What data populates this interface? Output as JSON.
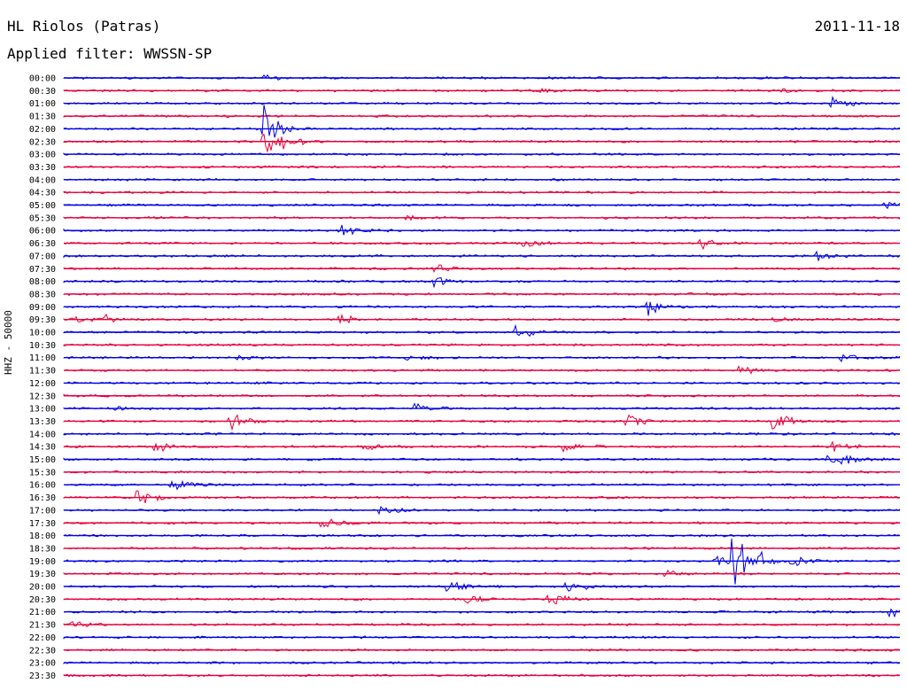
{
  "header": {
    "station": "HL Riolos (Patras)",
    "date": "2011-11-18",
    "filter": "Applied filter: WWSSN-SP"
  },
  "ylabel": "HHZ - 50000",
  "colors": {
    "odd_line": "#e8003c",
    "even_line": "#0000e6"
  },
  "chart_data": {
    "type": "line",
    "title": "",
    "subtitle": "",
    "ylabel": "HHZ - 50000",
    "xlabel": "",
    "rows": [
      "00:00",
      "00:30",
      "01:00",
      "01:30",
      "02:00",
      "02:30",
      "03:00",
      "03:30",
      "04:00",
      "04:30",
      "05:00",
      "05:30",
      "06:00",
      "06:30",
      "07:00",
      "07:30",
      "08:00",
      "08:30",
      "09:00",
      "09:30",
      "10:00",
      "10:30",
      "11:00",
      "11:30",
      "12:00",
      "12:30",
      "13:00",
      "13:30",
      "14:00",
      "14:30",
      "15:00",
      "15:30",
      "16:00",
      "16:30",
      "17:00",
      "17:30",
      "18:00",
      "18:30",
      "19:00",
      "19:30",
      "20:00",
      "20:30",
      "21:00",
      "21:30",
      "22:00",
      "22:30",
      "23:00",
      "23:30"
    ],
    "line_colors": [
      "#0000e6",
      "#e8003c"
    ],
    "grid": false,
    "legend": "none",
    "events": [
      {
        "row": 0,
        "x": 0.24,
        "amp": 0.4
      },
      {
        "row": 1,
        "x": 0.57,
        "amp": 0.3
      },
      {
        "row": 1,
        "x": 0.86,
        "amp": 0.3
      },
      {
        "row": 2,
        "x": 0.92,
        "amp": 0.8
      },
      {
        "row": 4,
        "x": 0.24,
        "amp": 3.0
      },
      {
        "row": 5,
        "x": 0.24,
        "amp": 2.5
      },
      {
        "row": 5,
        "x": 0.26,
        "amp": 1.0
      },
      {
        "row": 10,
        "x": 0.98,
        "amp": 0.8
      },
      {
        "row": 11,
        "x": 0.41,
        "amp": 0.3
      },
      {
        "row": 12,
        "x": 0.33,
        "amp": 0.9
      },
      {
        "row": 13,
        "x": 0.55,
        "amp": 0.8
      },
      {
        "row": 13,
        "x": 0.76,
        "amp": 1.0
      },
      {
        "row": 14,
        "x": 0.9,
        "amp": 1.0
      },
      {
        "row": 15,
        "x": 0.44,
        "amp": 0.8
      },
      {
        "row": 16,
        "x": 0.44,
        "amp": 1.0
      },
      {
        "row": 18,
        "x": 0.7,
        "amp": 1.0
      },
      {
        "row": 19,
        "x": 0.01,
        "amp": 0.7
      },
      {
        "row": 19,
        "x": 0.05,
        "amp": 0.5
      },
      {
        "row": 19,
        "x": 0.33,
        "amp": 0.8
      },
      {
        "row": 19,
        "x": 0.84,
        "amp": 0.6
      },
      {
        "row": 20,
        "x": 0.54,
        "amp": 1.2
      },
      {
        "row": 22,
        "x": 0.21,
        "amp": 0.5
      },
      {
        "row": 22,
        "x": 0.41,
        "amp": 0.6
      },
      {
        "row": 22,
        "x": 0.93,
        "amp": 1.0
      },
      {
        "row": 23,
        "x": 0.81,
        "amp": 0.8
      },
      {
        "row": 26,
        "x": 0.06,
        "amp": 0.4
      },
      {
        "row": 26,
        "x": 0.42,
        "amp": 0.6
      },
      {
        "row": 27,
        "x": 0.2,
        "amp": 1.4
      },
      {
        "row": 27,
        "x": 0.67,
        "amp": 1.5
      },
      {
        "row": 27,
        "x": 0.85,
        "amp": 1.4
      },
      {
        "row": 29,
        "x": 0.11,
        "amp": 0.7
      },
      {
        "row": 29,
        "x": 0.36,
        "amp": 0.6
      },
      {
        "row": 29,
        "x": 0.6,
        "amp": 0.6
      },
      {
        "row": 29,
        "x": 0.92,
        "amp": 1.0
      },
      {
        "row": 30,
        "x": 0.91,
        "amp": 0.7
      },
      {
        "row": 30,
        "x": 0.93,
        "amp": 0.8
      },
      {
        "row": 32,
        "x": 0.13,
        "amp": 1.0
      },
      {
        "row": 33,
        "x": 0.09,
        "amp": 0.9
      },
      {
        "row": 34,
        "x": 0.38,
        "amp": 0.6
      },
      {
        "row": 35,
        "x": 0.31,
        "amp": 1.5
      },
      {
        "row": 38,
        "x": 0.78,
        "amp": 0.8
      },
      {
        "row": 38,
        "x": 0.8,
        "amp": 4.0
      },
      {
        "row": 38,
        "x": 0.83,
        "amp": 1.0
      },
      {
        "row": 38,
        "x": 0.87,
        "amp": 0.8
      },
      {
        "row": 39,
        "x": 0.72,
        "amp": 0.4
      },
      {
        "row": 40,
        "x": 0.46,
        "amp": 1.0
      },
      {
        "row": 40,
        "x": 0.6,
        "amp": 1.0
      },
      {
        "row": 41,
        "x": 0.48,
        "amp": 0.9
      },
      {
        "row": 41,
        "x": 0.58,
        "amp": 1.0
      },
      {
        "row": 42,
        "x": 0.99,
        "amp": 0.6
      },
      {
        "row": 43,
        "x": 0.01,
        "amp": 0.6
      }
    ]
  }
}
